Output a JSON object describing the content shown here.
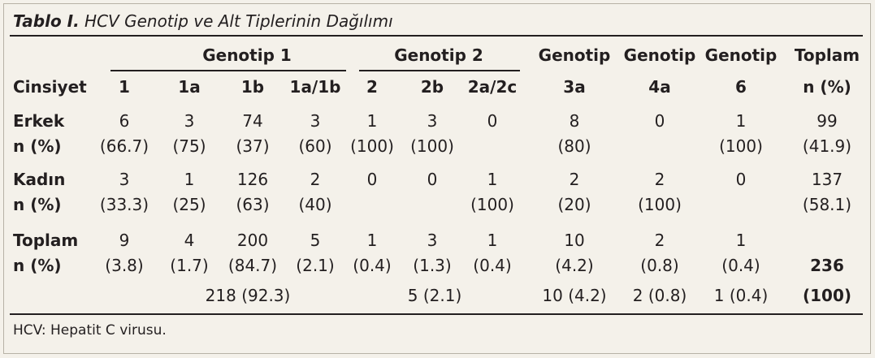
{
  "title": {
    "bold": "Tablo I.",
    "rest": " HCV Genotip ve Alt Tiplerinin Dağılımı"
  },
  "header": {
    "group1": "Genotip 1",
    "group2": "Genotip 2",
    "genotip": "Genotip",
    "toplam": "Toplam",
    "cinsiyet": "Cinsiyet",
    "n_pct": "n (%)",
    "subtypes": [
      "1",
      "1a",
      "1b",
      "1a/1b",
      "2",
      "2b",
      "2a/2c",
      "3a",
      "4a",
      "6"
    ]
  },
  "rows": {
    "erkek": {
      "label": "Erkek",
      "sub": "n (%)",
      "counts": [
        "6",
        "3",
        "74",
        "3",
        "1",
        "3",
        "0",
        "8",
        "0",
        "1",
        "99"
      ],
      "pcts": [
        "(66.7)",
        "(75)",
        "(37)",
        "(60)",
        "(100)",
        "(100)",
        "",
        "(80)",
        "",
        "(100)",
        "(41.9)"
      ]
    },
    "kadin": {
      "label": "Kadın",
      "sub": "n (%)",
      "counts": [
        "3",
        "1",
        "126",
        "2",
        "0",
        "0",
        "1",
        "2",
        "2",
        "0",
        "137"
      ],
      "pcts": [
        "(33.3)",
        "(25)",
        "(63)",
        "(40)",
        "",
        "",
        "(100)",
        "(20)",
        "(100)",
        "",
        "(58.1)"
      ]
    },
    "toplam": {
      "label": "Toplam",
      "sub": "n (%)",
      "counts": [
        "9",
        "4",
        "200",
        "5",
        "1",
        "3",
        "1",
        "10",
        "2",
        "1"
      ],
      "pcts": [
        "(3.8)",
        "(1.7)",
        "(84.7)",
        "(2.1)",
        "(0.4)",
        "(1.3)",
        "(0.4)",
        "(4.2)",
        "(0.8)",
        "(0.4)"
      ],
      "grand_total": "236",
      "grand_pct": "(100)"
    }
  },
  "group_totals": {
    "g1": "218 (92.3)",
    "g2": "5 (2.1)",
    "g3": "10 (4.2)",
    "g4": "2 (0.8)",
    "g6": "1 (0.4)"
  },
  "footnote": "HCV: Hepatit C virusu."
}
